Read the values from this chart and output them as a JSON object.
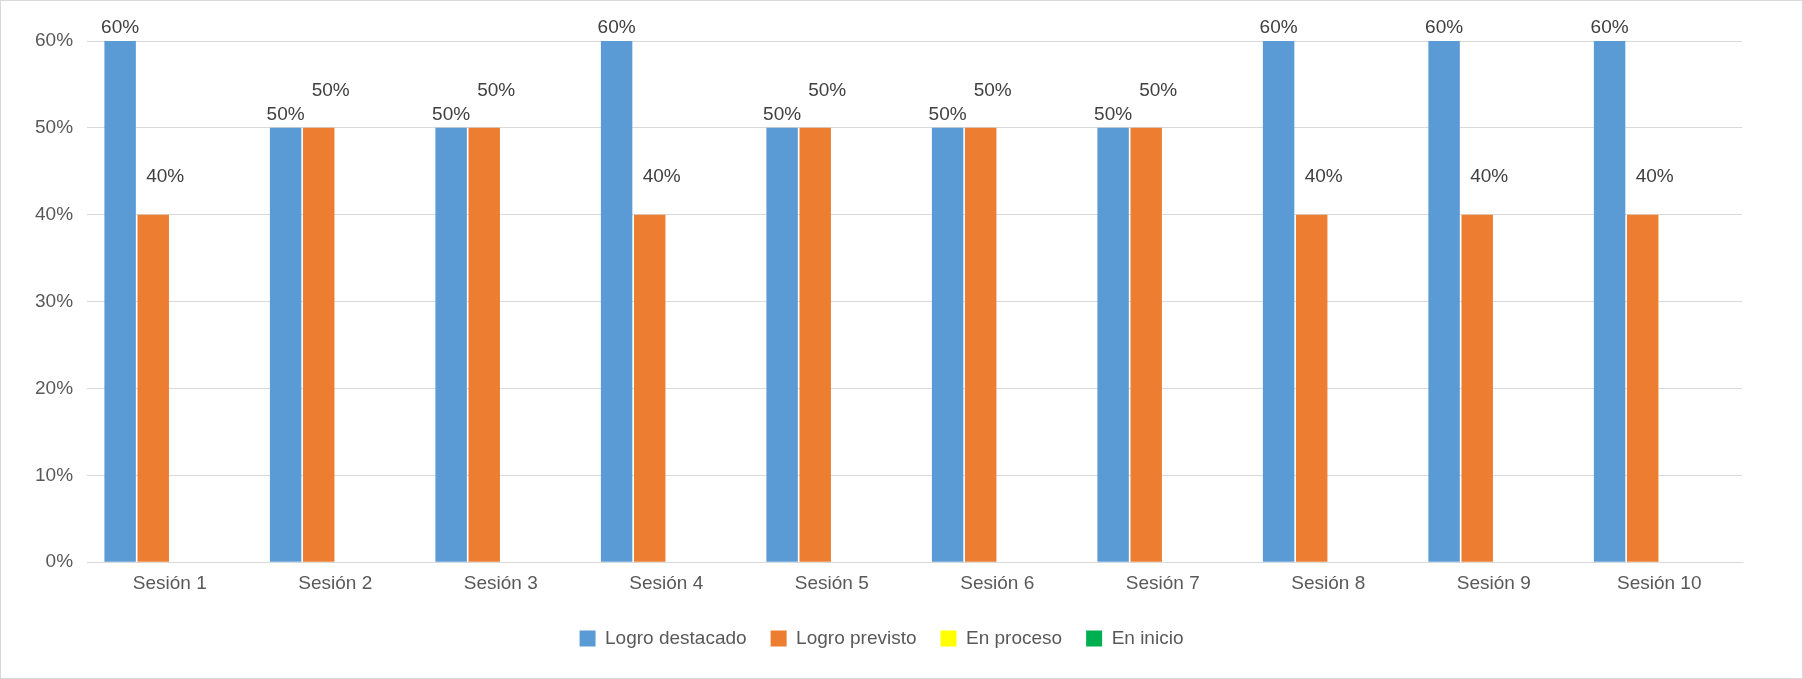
{
  "chart_data": {
    "type": "bar",
    "categories": [
      "Sesión 1",
      "Sesión 2",
      "Sesión 3",
      "Sesión 4",
      "Sesión 5",
      "Sesión 6",
      "Sesión 7",
      "Sesión 8",
      "Sesión 9",
      "Sesión 10"
    ],
    "series": [
      {
        "name": "Logro destacado",
        "color": "#5b9bd5",
        "values": [
          60,
          50,
          50,
          60,
          50,
          50,
          50,
          60,
          60,
          60
        ],
        "value_labels": [
          "60%",
          "50%",
          "50%",
          "60%",
          "50%",
          "50%",
          "50%",
          "60%",
          "60%",
          "60%"
        ]
      },
      {
        "name": "Logro previsto",
        "color": "#ed7d31",
        "values": [
          40,
          50,
          50,
          40,
          50,
          50,
          50,
          40,
          40,
          40
        ],
        "value_labels": [
          "40%",
          "50%",
          "50%",
          "40%",
          "50%",
          "50%",
          "50%",
          "40%",
          "40%",
          "40%"
        ]
      },
      {
        "name": "En proceso",
        "color": "#ffff00",
        "values": [
          0,
          0,
          0,
          0,
          0,
          0,
          0,
          0,
          0,
          0
        ]
      },
      {
        "name": "En inicio",
        "color": "#00b050",
        "values": [
          0,
          0,
          0,
          0,
          0,
          0,
          0,
          0,
          0,
          0
        ]
      }
    ],
    "ylim": [
      0,
      60
    ],
    "yticks": [
      {
        "value": 0,
        "label": "0%"
      },
      {
        "value": 10,
        "label": "10%"
      },
      {
        "value": 20,
        "label": "20%"
      },
      {
        "value": 30,
        "label": "30%"
      },
      {
        "value": 40,
        "label": "40%"
      },
      {
        "value": 50,
        "label": "50%"
      },
      {
        "value": 60,
        "label": "60%"
      }
    ],
    "grid": "y",
    "legend": "bottom"
  }
}
